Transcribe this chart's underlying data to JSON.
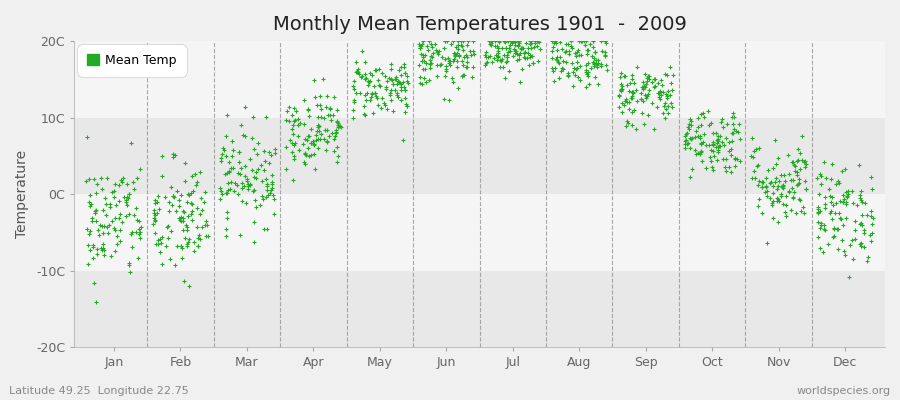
{
  "title": "Monthly Mean Temperatures 1901  -  2009",
  "ylabel": "Temperature",
  "xlabel_bottom_left": "Latitude 49.25  Longitude 22.75",
  "xlabel_bottom_right": "worldspecies.org",
  "ylim": [
    -20,
    20
  ],
  "yticks": [
    -20,
    -10,
    0,
    10,
    20
  ],
  "ytick_labels": [
    "-20C",
    "-10C",
    "0C",
    "10C",
    "20C"
  ],
  "month_names": [
    "Jan",
    "Feb",
    "Mar",
    "Apr",
    "May",
    "Jun",
    "Jul",
    "Aug",
    "Sep",
    "Oct",
    "Nov",
    "Dec"
  ],
  "dot_color": "#22aa22",
  "dot_size": 8,
  "background_color": "#f0f0f0",
  "plot_bg_color": "#ffffff",
  "band_colors": [
    "#f0f0f0",
    "#ffffff"
  ],
  "legend_color": "#22aa22",
  "title_fontsize": 14,
  "axis_fontsize": 10,
  "tick_fontsize": 9,
  "n_years": 109,
  "monthly_means": [
    -3.5,
    -3.5,
    2.5,
    8.5,
    14.0,
    17.5,
    19.0,
    17.5,
    13.0,
    7.0,
    1.5,
    -2.5
  ],
  "monthly_stds": [
    4.0,
    4.0,
    3.2,
    2.5,
    2.0,
    1.8,
    1.5,
    1.8,
    2.0,
    2.2,
    2.8,
    3.2
  ],
  "random_seed": 42
}
